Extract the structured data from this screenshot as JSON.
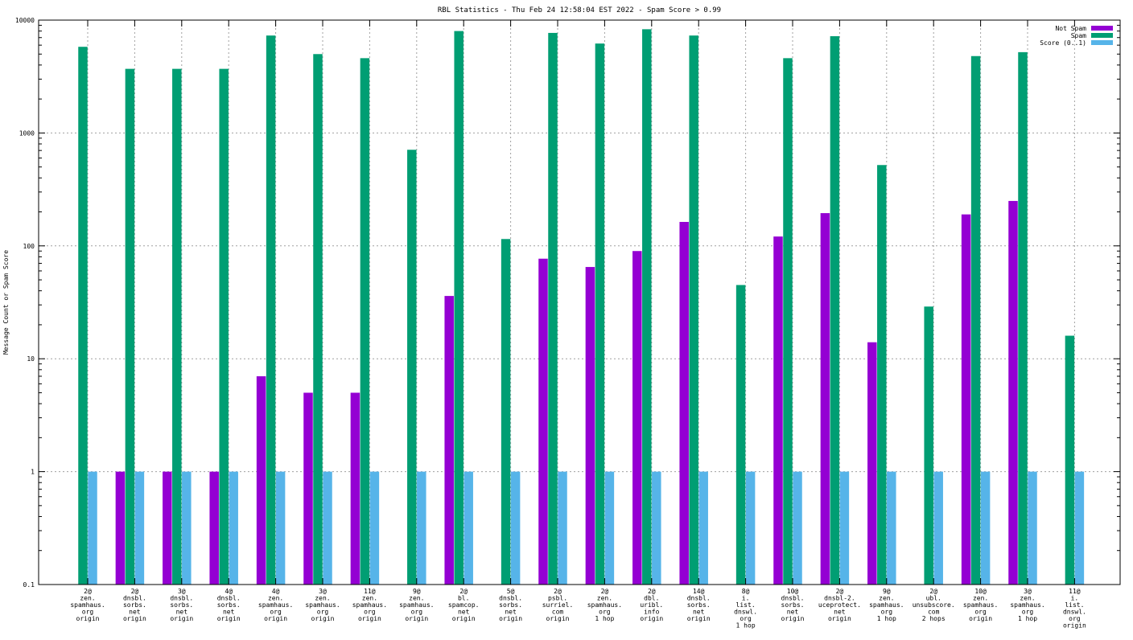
{
  "chart_data": {
    "type": "bar",
    "title": "RBL Statistics - Thu Feb 24 12:58:04 EST 2022 - Spam Score > 0.99",
    "xlabel": "",
    "ylabel": "Message Count or Spam Score",
    "yscale": "log",
    "ylim": [
      0.1,
      10000
    ],
    "yticks": [
      {
        "value": 0.1,
        "label": "0.1"
      },
      {
        "value": 1,
        "label": "1"
      },
      {
        "value": 10,
        "label": "10"
      },
      {
        "value": 100,
        "label": "100"
      },
      {
        "value": 1000,
        "label": "1000"
      },
      {
        "value": 10000,
        "label": "10000"
      }
    ],
    "grid": true,
    "legend_position": "top-right",
    "categories": [
      [
        "2@",
        "zen.",
        "spamhaus.",
        "org",
        "origin"
      ],
      [
        "2@",
        "dnsbl.",
        "sorbs.",
        "net",
        "origin"
      ],
      [
        "3@",
        "dnsbl.",
        "sorbs.",
        "net",
        "origin"
      ],
      [
        "4@",
        "dnsbl.",
        "sorbs.",
        "net",
        "origin"
      ],
      [
        "4@",
        "zen.",
        "spamhaus.",
        "org",
        "origin"
      ],
      [
        "3@",
        "zen.",
        "spamhaus.",
        "org",
        "origin"
      ],
      [
        "11@",
        "zen.",
        "spamhaus.",
        "org",
        "origin"
      ],
      [
        "9@",
        "zen.",
        "spamhaus.",
        "org",
        "origin"
      ],
      [
        "2@",
        "bl.",
        "spamcop.",
        "net",
        "origin"
      ],
      [
        "5@",
        "dnsbl.",
        "sorbs.",
        "net",
        "origin"
      ],
      [
        "2@",
        "psbl.",
        "surriel.",
        "com",
        "origin"
      ],
      [
        "2@",
        "zen.",
        "spamhaus.",
        "org",
        "1 hop"
      ],
      [
        "2@",
        "dbl.",
        "uribl.",
        "info",
        "origin"
      ],
      [
        "14@",
        "dnsbl.",
        "sorbs.",
        "net",
        "origin"
      ],
      [
        "8@",
        "i.",
        "list.",
        "dnswl.",
        "org",
        "1 hop"
      ],
      [
        "10@",
        "dnsbl.",
        "sorbs.",
        "net",
        "origin"
      ],
      [
        "2@",
        "dnsbl-2.",
        "uceprotect.",
        "net",
        "origin"
      ],
      [
        "9@",
        "zen.",
        "spamhaus.",
        "org",
        "1 hop"
      ],
      [
        "2@",
        "ubl.",
        "unsubscore.",
        "com",
        "2 hops"
      ],
      [
        "10@",
        "zen.",
        "spamhaus.",
        "org",
        "origin"
      ],
      [
        "3@",
        "zen.",
        "spamhaus.",
        "org",
        "1 hop"
      ],
      [
        "11@",
        "i.",
        "list.",
        "dnswl.",
        "org",
        "origin"
      ]
    ],
    "series": [
      {
        "name": "Not Spam",
        "color": "#9400d3",
        "values": [
          null,
          1,
          1,
          1,
          7,
          5,
          5,
          null,
          36,
          null,
          77,
          65,
          90,
          163,
          null,
          121,
          195,
          14,
          null,
          190,
          250,
          null
        ]
      },
      {
        "name": "Spam",
        "color": "#009e73",
        "values": [
          5800,
          3700,
          3700,
          3700,
          7300,
          5000,
          4600,
          710,
          8000,
          115,
          7700,
          6200,
          8300,
          7300,
          45,
          4600,
          7200,
          520,
          29,
          4800,
          5200,
          16
        ]
      },
      {
        "name": "Score (0..1)",
        "color": "#56b4e9",
        "values": [
          1,
          1,
          1,
          1,
          1,
          1,
          1,
          1,
          1,
          1,
          1,
          1,
          1,
          1,
          1,
          1,
          1,
          1,
          1,
          1,
          1,
          1
        ]
      }
    ]
  }
}
